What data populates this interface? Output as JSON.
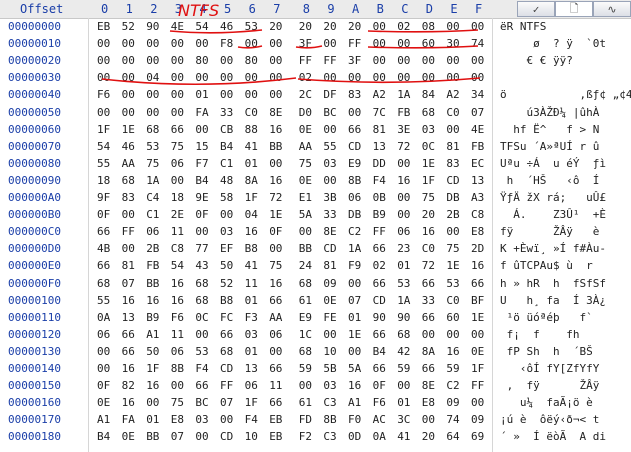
{
  "header": {
    "offset_label": "Offset",
    "columns": [
      "0",
      "1",
      "2",
      "3",
      "4",
      "5",
      "6",
      "7",
      "8",
      "9",
      "A",
      "B",
      "C",
      "D",
      "E",
      "F"
    ]
  },
  "tabs": [
    {
      "icon": "checkmark-icon",
      "glyph": "✓"
    },
    {
      "icon": "document-icon",
      "glyph": "🗋"
    },
    {
      "icon": "wave-icon",
      "glyph": "∿"
    }
  ],
  "annotation_text": "NTFS",
  "rows": [
    {
      "offset": "00000000",
      "bytes": [
        "EB",
        "52",
        "90",
        "4E",
        "54",
        "46",
        "53",
        "20",
        "20",
        "20",
        "20",
        "00",
        "02",
        "08",
        "00",
        "00"
      ],
      "ascii": "ëR NTFS"
    },
    {
      "offset": "00000010",
      "bytes": [
        "00",
        "00",
        "00",
        "00",
        "00",
        "F8",
        "00",
        "00",
        "3F",
        "00",
        "FF",
        "00",
        "00",
        "60",
        "30",
        "74"
      ],
      "ascii": "     ø  ? ÿ  `0t"
    },
    {
      "offset": "00000020",
      "bytes": [
        "00",
        "00",
        "00",
        "00",
        "80",
        "00",
        "80",
        "00",
        "FF",
        "FF",
        "3F",
        "00",
        "00",
        "00",
        "00",
        "00"
      ],
      "ascii": "    € € ÿÿ?"
    },
    {
      "offset": "00000030",
      "bytes": [
        "00",
        "00",
        "04",
        "00",
        "00",
        "00",
        "00",
        "00",
        "02",
        "00",
        "00",
        "00",
        "00",
        "00",
        "00",
        "00"
      ],
      "ascii": ""
    },
    {
      "offset": "00000040",
      "bytes": [
        "F6",
        "00",
        "00",
        "00",
        "01",
        "00",
        "00",
        "00",
        "2C",
        "DF",
        "83",
        "A2",
        "1A",
        "84",
        "A2",
        "34"
      ],
      "ascii": "ö           ,ßƒ¢ „¢4"
    },
    {
      "offset": "00000050",
      "bytes": [
        "00",
        "00",
        "00",
        "00",
        "FA",
        "33",
        "C0",
        "8E",
        "D0",
        "BC",
        "00",
        "7C",
        "FB",
        "68",
        "C0",
        "07"
      ],
      "ascii": "    ú3ÀŽÐ¼ |ûhÀ"
    },
    {
      "offset": "00000060",
      "bytes": [
        "1F",
        "1E",
        "68",
        "66",
        "00",
        "CB",
        "88",
        "16",
        "0E",
        "00",
        "66",
        "81",
        "3E",
        "03",
        "00",
        "4E"
      ],
      "ascii": "  hf Ë^   f > N"
    },
    {
      "offset": "00000070",
      "bytes": [
        "54",
        "46",
        "53",
        "75",
        "15",
        "B4",
        "41",
        "BB",
        "AA",
        "55",
        "CD",
        "13",
        "72",
        "0C",
        "81",
        "FB"
      ],
      "ascii": "TFSu ´A»ªUÍ r û"
    },
    {
      "offset": "00000080",
      "bytes": [
        "55",
        "AA",
        "75",
        "06",
        "F7",
        "C1",
        "01",
        "00",
        "75",
        "03",
        "E9",
        "DD",
        "00",
        "1E",
        "83",
        "EC"
      ],
      "ascii": "Uªu ÷Á  u éÝ  ƒì"
    },
    {
      "offset": "00000090",
      "bytes": [
        "18",
        "68",
        "1A",
        "00",
        "B4",
        "48",
        "8A",
        "16",
        "0E",
        "00",
        "8B",
        "F4",
        "16",
        "1F",
        "CD",
        "13"
      ],
      "ascii": " h  ´HŠ   ‹ô  Í"
    },
    {
      "offset": "000000A0",
      "bytes": [
        "9F",
        "83",
        "C4",
        "18",
        "9E",
        "58",
        "1F",
        "72",
        "E1",
        "3B",
        "06",
        "0B",
        "00",
        "75",
        "DB",
        "A3"
      ],
      "ascii": "ŸƒÄ žX rá;   uÛ£"
    },
    {
      "offset": "000000B0",
      "bytes": [
        "0F",
        "00",
        "C1",
        "2E",
        "0F",
        "00",
        "04",
        "1E",
        "5A",
        "33",
        "DB",
        "B9",
        "00",
        "20",
        "2B",
        "C8"
      ],
      "ascii": "  Á.    Z3Û¹  +È"
    },
    {
      "offset": "000000C0",
      "bytes": [
        "66",
        "FF",
        "06",
        "11",
        "00",
        "03",
        "16",
        "0F",
        "00",
        "8E",
        "C2",
        "FF",
        "06",
        "16",
        "00",
        "E8"
      ],
      "ascii": "fÿ      ŽÂÿ   è"
    },
    {
      "offset": "000000D0",
      "bytes": [
        "4B",
        "00",
        "2B",
        "C8",
        "77",
        "EF",
        "B8",
        "00",
        "BB",
        "CD",
        "1A",
        "66",
        "23",
        "C0",
        "75",
        "2D"
      ],
      "ascii": "K +Èwï¸ »Í f#Àu-"
    },
    {
      "offset": "000000E0",
      "bytes": [
        "66",
        "81",
        "FB",
        "54",
        "43",
        "50",
        "41",
        "75",
        "24",
        "81",
        "F9",
        "02",
        "01",
        "72",
        "1E",
        "16"
      ],
      "ascii": "f ûTCPAu$ ù  r"
    },
    {
      "offset": "000000F0",
      "bytes": [
        "68",
        "07",
        "BB",
        "16",
        "68",
        "52",
        "11",
        "16",
        "68",
        "09",
        "00",
        "66",
        "53",
        "66",
        "53",
        "66"
      ],
      "ascii": "h » hR  h  fSfSf"
    },
    {
      "offset": "00000100",
      "bytes": [
        "55",
        "16",
        "16",
        "16",
        "68",
        "B8",
        "01",
        "66",
        "61",
        "0E",
        "07",
        "CD",
        "1A",
        "33",
        "C0",
        "BF"
      ],
      "ascii": "U   h¸ fa  Í 3À¿"
    },
    {
      "offset": "00000110",
      "bytes": [
        "0A",
        "13",
        "B9",
        "F6",
        "0C",
        "FC",
        "F3",
        "AA",
        "E9",
        "FE",
        "01",
        "90",
        "90",
        "66",
        "60",
        "1E"
      ],
      "ascii": " ¹ö üóªéþ   f`"
    },
    {
      "offset": "00000120",
      "bytes": [
        "06",
        "66",
        "A1",
        "11",
        "00",
        "66",
        "03",
        "06",
        "1C",
        "00",
        "1E",
        "66",
        "68",
        "00",
        "00",
        "00"
      ],
      "ascii": " f¡  f    fh"
    },
    {
      "offset": "00000130",
      "bytes": [
        "00",
        "66",
        "50",
        "06",
        "53",
        "68",
        "01",
        "00",
        "68",
        "10",
        "00",
        "B4",
        "42",
        "8A",
        "16",
        "0E"
      ],
      "ascii": " fP Sh  h  ´BŠ"
    },
    {
      "offset": "00000140",
      "bytes": [
        "00",
        "16",
        "1F",
        "8B",
        "F4",
        "CD",
        "13",
        "66",
        "59",
        "5B",
        "5A",
        "66",
        "59",
        "66",
        "59",
        "1F"
      ],
      "ascii": "   ‹ôÍ fY[ZfYfY"
    },
    {
      "offset": "00000150",
      "bytes": [
        "0F",
        "82",
        "16",
        "00",
        "66",
        "FF",
        "06",
        "11",
        "00",
        "03",
        "16",
        "0F",
        "00",
        "8E",
        "C2",
        "FF"
      ],
      "ascii": " ‚  fÿ      ŽÂÿ"
    },
    {
      "offset": "00000160",
      "bytes": [
        "0E",
        "16",
        "00",
        "75",
        "BC",
        "07",
        "1F",
        "66",
        "61",
        "C3",
        "A1",
        "F6",
        "01",
        "E8",
        "09",
        "00"
      ],
      "ascii": "   u¼  faÃ¡ö è"
    },
    {
      "offset": "00000170",
      "bytes": [
        "A1",
        "FA",
        "01",
        "E8",
        "03",
        "00",
        "F4",
        "EB",
        "FD",
        "8B",
        "F0",
        "AC",
        "3C",
        "00",
        "74",
        "09"
      ],
      "ascii": "¡ú è  ôëý‹ð¬< t"
    },
    {
      "offset": "00000180",
      "bytes": [
        "B4",
        "0E",
        "BB",
        "07",
        "00",
        "CD",
        "10",
        "EB",
        "F2",
        "C3",
        "0D",
        "0A",
        "41",
        "20",
        "64",
        "69"
      ],
      "ascii": "´ »  Í ëòÃ  A di"
    }
  ]
}
